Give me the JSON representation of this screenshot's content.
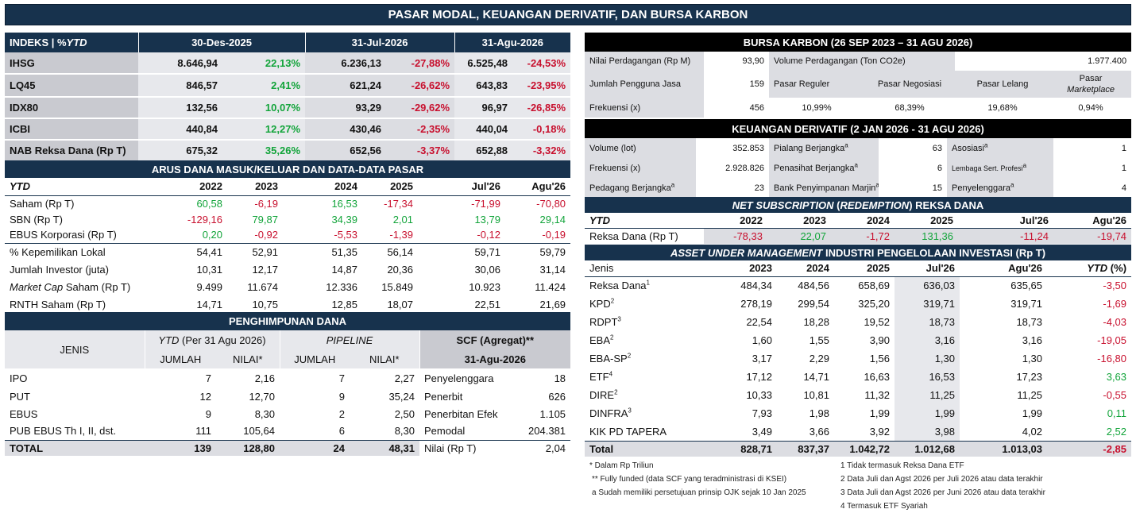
{
  "banner_title": "PASAR MODAL, KEUANGAN DERIVATIF, DAN BURSA KARBON",
  "indeks": {
    "col_label": "INDEKS | %",
    "col_label_ytd": "YTD",
    "periods": [
      "30-Des-2025",
      "31-Jul-2026",
      "31-Agu-2026"
    ],
    "rows": [
      {
        "name": "IHSG",
        "v1": "8.646,94",
        "p1": "22,13%",
        "v2": "6.236,13",
        "p2": "-27,88%",
        "v3": "6.525,48",
        "p3": "-24,53%"
      },
      {
        "name": "LQ45",
        "v1": "846,57",
        "p1": "2,41%",
        "v2": "621,24",
        "p2": "-26,62%",
        "v3": "643,83",
        "p3": "-23,95%"
      },
      {
        "name": "IDX80",
        "v1": "132,56",
        "p1": "10,07%",
        "v2": "93,29",
        "p2": "-29,62%",
        "v3": "96,97",
        "p3": "-26,85%"
      },
      {
        "name": "ICBI",
        "v1": "440,84",
        "p1": "12,27%",
        "v2": "430,46",
        "p2": "-2,35%",
        "v3": "440,04",
        "p3": "-0,18%"
      },
      {
        "name": "NAB Reksa Dana (Rp T)",
        "v1": "675,32",
        "p1": "35,26%",
        "v2": "652,56",
        "p2": "-3,37%",
        "v3": "652,88",
        "p3": "-3,32%"
      }
    ]
  },
  "arus": {
    "title": "ARUS DANA MASUK/KELUAR DAN DATA-DATA PASAR",
    "ytd": "YTD",
    "cols": [
      "2022",
      "2023",
      "2024",
      "2025",
      "Jul'26",
      "Agu'26"
    ],
    "rows": [
      {
        "label": "Saham (Rp T)",
        "v": [
          "60,58",
          "-6,19",
          "16,53",
          "-17,34",
          "-71,99",
          "-70,80"
        ]
      },
      {
        "label": "SBN (Rp T)",
        "v": [
          "-129,16",
          "79,87",
          "34,39",
          "2,01",
          "13,79",
          "29,14"
        ]
      },
      {
        "label": "EBUS Korporasi (Rp T)",
        "v": [
          "0,20",
          "-0,92",
          "-5,53",
          "-1,39",
          "-0,12",
          "-0,19"
        ]
      },
      {
        "label": "% Kepemilikan Lokal",
        "v": [
          "54,41",
          "52,91",
          "51,35",
          "56,14",
          "59,71",
          "59,79"
        ]
      },
      {
        "label": "Jumlah Investor (juta)",
        "v": [
          "10,31",
          "12,17",
          "14,87",
          "20,36",
          "30,06",
          "31,14"
        ]
      },
      {
        "label_i": "Market Cap",
        "label": " Saham (Rp T)",
        "v": [
          "9.499",
          "11.674",
          "12.336",
          "15.849",
          "10.923",
          "11.424"
        ]
      },
      {
        "label": "RNTH Saham (Rp T)",
        "v": [
          "14,71",
          "10,75",
          "12,85",
          "18,07",
          "22,51",
          "21,69"
        ]
      }
    ]
  },
  "penghimpunan": {
    "title": "PENGHIMPUNAN DANA",
    "jenis": "JENIS",
    "ytd_i": "YTD",
    "ytd_rest": " (Per 31 Agu 2026)",
    "pipeline": "PIPELINE",
    "scf": "SCF (Agregat)**",
    "jumlah": "JUMLAH",
    "nilai": "NILAI*",
    "scf_date": "31-Agu-2026",
    "rows": [
      {
        "jenis": "IPO",
        "j1": "7",
        "n1": "2,16",
        "j2": "7",
        "n2": "2,27",
        "scf_label": "Penyelenggara",
        "scf_val": "18"
      },
      {
        "jenis": "PUT",
        "j1": "12",
        "n1": "12,70",
        "j2": "9",
        "n2": "35,24",
        "scf_label": "Penerbit",
        "scf_val": "626"
      },
      {
        "jenis": "EBUS",
        "j1": "9",
        "n1": "8,30",
        "j2": "2",
        "n2": "2,50",
        "scf_label": "Penerbitan Efek",
        "scf_val": "1.105"
      },
      {
        "jenis": "PUB EBUS Th I, II, dst.",
        "j1": "111",
        "n1": "105,64",
        "j2": "6",
        "n2": "8,30",
        "scf_label": "Pemodal",
        "scf_val": "204.381"
      }
    ],
    "total": {
      "jenis": "TOTAL",
      "j1": "139",
      "n1": "128,80",
      "j2": "24",
      "n2": "48,31",
      "scf_label": "Nilai (Rp T)",
      "scf_val": "2,04"
    }
  },
  "karbon": {
    "title": "BURSA KARBON (26 SEP 2023 – 31 AGU 2026)",
    "nilai_label": "Nilai Perdagangan (Rp M)",
    "nilai_val": "93,90",
    "volume_label": "Volume Perdagangan (Ton CO2e)",
    "volume_val": "1.977.400",
    "pengguna_label": "Jumlah Pengguna Jasa",
    "pengguna_val": "159",
    "reguler": "Pasar Reguler",
    "negosiasi": "Pasar Negosiasi",
    "lelang": "Pasar Lelang",
    "marketplace_1": "Pasar",
    "marketplace_2": "Marketplace",
    "frek_label": "Frekuensi (x)",
    "frek_val": "456",
    "pct": [
      "10,99%",
      "68,39%",
      "19,68%",
      "0,94%"
    ]
  },
  "derivatif": {
    "title": "KEUANGAN DERIVATIF (2 JAN 2026 - 31 AGU 2026)",
    "rows": [
      {
        "l1": "Volume (lot)",
        "v1": "352.853",
        "l2": "Pialang Berjangka",
        "s2": "a",
        "v2": "63",
        "l3": "Asosiasi",
        "s3": "a",
        "v3": "1"
      },
      {
        "l1": "Frekuensi (x)",
        "v1": "2.928.826",
        "l2": "Penasihat Berjangka",
        "s2": "a",
        "v2": "6",
        "l3": "Lembaga Sert. Profesi",
        "s3": "a",
        "v3": "1"
      },
      {
        "l1": "Pedagang Berjangka",
        "s1": "a",
        "v1": "23",
        "l2": "Bank Penyimpanan Marjin",
        "s2": "a",
        "v2": "15",
        "l3": "Penyelenggara",
        "s3": "a",
        "v3": "4"
      }
    ]
  },
  "netsub": {
    "title_i": "NET SUBSCRIPTION",
    "title_m": " (",
    "title_i2": "REDEMPTION",
    "title_e": ") REKSA DANA",
    "ytd": "YTD",
    "cols": [
      "2022",
      "2023",
      "2024",
      "2025",
      "Jul'26",
      "Agu'26"
    ],
    "row_label": "Reksa Dana (Rp T)",
    "row": [
      "-78,33",
      "22,07",
      "-1,72",
      "131,36",
      "-11,24",
      "-19,74"
    ]
  },
  "aum": {
    "title_i": "ASSET UNDER MANAGEMENT",
    "title_e": " INDUSTRI PENGELOLAAN INVESTASI (Rp T)",
    "jenis": "Jenis",
    "cols": [
      "2023",
      "2024",
      "2025",
      "Jul'26",
      "Agu'26"
    ],
    "ytd_i": "YTD",
    "ytd_rest": " (%)",
    "rows": [
      {
        "name": "Reksa Dana",
        "sup": "1",
        "v": [
          "484,34",
          "484,56",
          "658,69",
          "636,03",
          "635,65"
        ],
        "ytd": "-3,50"
      },
      {
        "name": "KPD",
        "sup": "2",
        "v": [
          "278,19",
          "299,54",
          "325,20",
          "319,71",
          "319,71"
        ],
        "ytd": "-1,69"
      },
      {
        "name": "RDPT",
        "sup": "3",
        "v": [
          "22,54",
          "18,28",
          "19,52",
          "18,73",
          "18,73"
        ],
        "ytd": "-4,03"
      },
      {
        "name": "EBA",
        "sup": "2",
        "v": [
          "1,60",
          "1,55",
          "3,90",
          "3,16",
          "3,16"
        ],
        "ytd": "-19,05"
      },
      {
        "name": "EBA-SP",
        "sup": "2",
        "v": [
          "3,17",
          "2,29",
          "1,56",
          "1,30",
          "1,30"
        ],
        "ytd": "-16,80"
      },
      {
        "name": "ETF",
        "sup": "4",
        "v": [
          "17,12",
          "14,71",
          "16,63",
          "16,53",
          "17,23"
        ],
        "ytd": "3,63"
      },
      {
        "name": "DIRE",
        "sup": "2",
        "v": [
          "10,33",
          "10,81",
          "11,32",
          "11,25",
          "11,25"
        ],
        "ytd": "-0,55"
      },
      {
        "name": "DINFRA",
        "sup": "3",
        "v": [
          "7,93",
          "1,98",
          "1,99",
          "1,99",
          "1,99"
        ],
        "ytd": "0,11"
      },
      {
        "name": "KIK PD TAPERA",
        "sup": "",
        "v": [
          "3,49",
          "3,66",
          "3,92",
          "3,98",
          "4,02"
        ],
        "ytd": "2,52"
      }
    ],
    "total": {
      "name": "Total",
      "v": [
        "828,71",
        "837,37",
        "1.042,72",
        "1.012,68",
        "1.013,03"
      ],
      "ytd": "-2,85"
    }
  },
  "notes_left": [
    "* Dalam Rp Triliun",
    "** Fully funded (data SCF yang teradministrasi di KSEI)",
    "a Sudah memiliki persetujuan prinsip OJK sejak 10 Jan 2025"
  ],
  "notes_right": [
    "1 Tidak termasuk Reksa Dana ETF",
    "2 Data Juli dan Agst 2026 per Juli 2026 atau data terakhir",
    "3 Data Juli dan Agst 2026 per Juni 2026 atau data terakhir",
    "4 Termasuk ETF Syariah"
  ],
  "colors": {
    "navy": "#17324d",
    "positive": "#12a43a",
    "negative": "#c8102e",
    "gray": "#dcdde2"
  }
}
